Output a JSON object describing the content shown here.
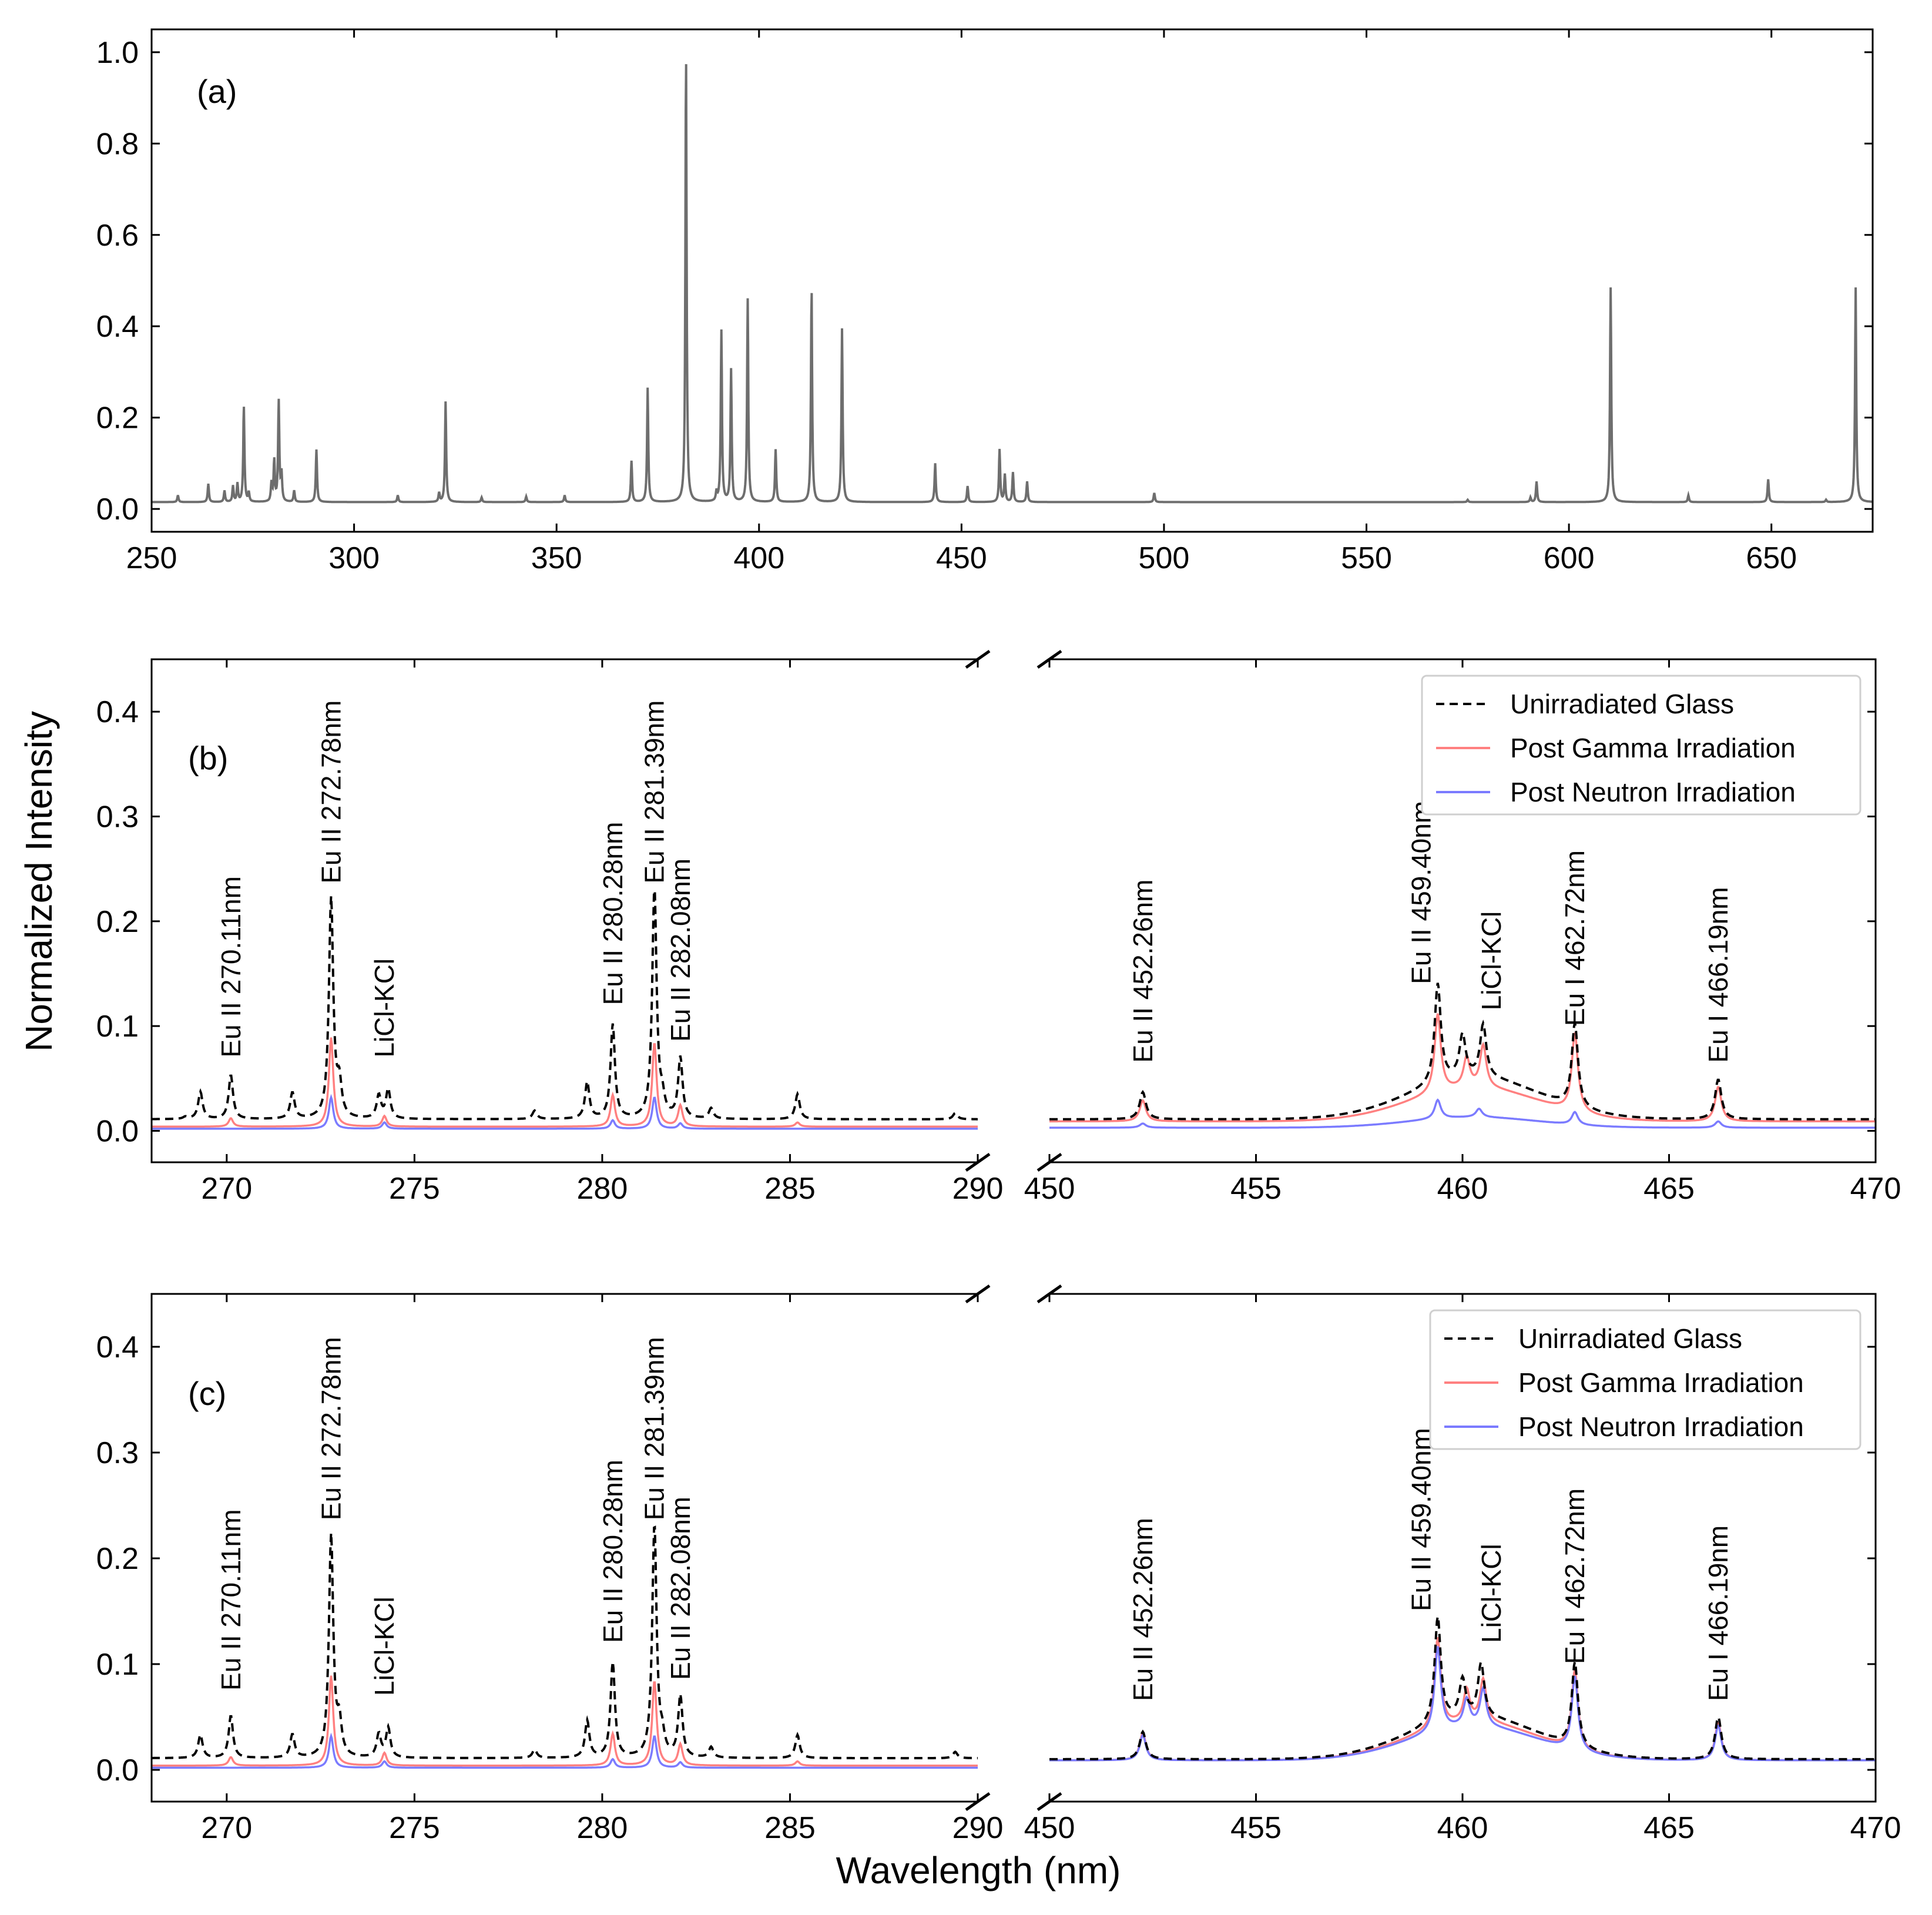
{
  "figure": {
    "ylabel": "Normalized Intensity",
    "xlabel": "Wavelength (nm)"
  },
  "colors": {
    "panel_a_line": "#6e6e6e",
    "unirradiated": "#000000",
    "gamma": "#ff8080",
    "neutron": "#7b7bff"
  },
  "chart_data": [
    {
      "id": "a",
      "type": "line",
      "panel_label": "(a)",
      "xlim": [
        250,
        675
      ],
      "ylim": [
        -0.05,
        1.05
      ],
      "xticks": [
        250,
        300,
        350,
        400,
        450,
        500,
        550,
        600,
        650
      ],
      "yticks": [
        0.0,
        0.2,
        0.4,
        0.6,
        0.8,
        1.0
      ],
      "baseline": 0.015,
      "peaks": [
        [
          256.5,
          0.015
        ],
        [
          264.0,
          0.04
        ],
        [
          268.0,
          0.025
        ],
        [
          270.1,
          0.035
        ],
        [
          271.2,
          0.04
        ],
        [
          272.78,
          0.21
        ],
        [
          274.0,
          0.02
        ],
        [
          279.6,
          0.04
        ],
        [
          280.28,
          0.09
        ],
        [
          281.39,
          0.22
        ],
        [
          282.08,
          0.06
        ],
        [
          285.2,
          0.025
        ],
        [
          290.7,
          0.115
        ],
        [
          310.8,
          0.015
        ],
        [
          321.0,
          0.02
        ],
        [
          322.6,
          0.22
        ],
        [
          331.5,
          0.01
        ],
        [
          342.5,
          0.012
        ],
        [
          352.0,
          0.015
        ],
        [
          368.5,
          0.09
        ],
        [
          372.5,
          0.25
        ],
        [
          381.97,
          0.985
        ],
        [
          389.5,
          0.02
        ],
        [
          390.7,
          0.375
        ],
        [
          393.1,
          0.29
        ],
        [
          397.2,
          0.445
        ],
        [
          404.1,
          0.115
        ],
        [
          412.97,
          0.47
        ],
        [
          420.5,
          0.38
        ],
        [
          443.5,
          0.085
        ],
        [
          451.5,
          0.035
        ],
        [
          459.4,
          0.115
        ],
        [
          460.7,
          0.06
        ],
        [
          462.7,
          0.065
        ],
        [
          466.2,
          0.045
        ],
        [
          497.6,
          0.02
        ],
        [
          575.0,
          0.005
        ],
        [
          590.5,
          0.01
        ],
        [
          592.0,
          0.045
        ],
        [
          610.3,
          0.47
        ],
        [
          629.5,
          0.015
        ],
        [
          649.2,
          0.05
        ],
        [
          663.5,
          0.005
        ],
        [
          670.8,
          0.47
        ]
      ]
    },
    {
      "id": "b",
      "type": "line",
      "panel_label": "(b)",
      "broken_x_axis": true,
      "left_xlim": [
        268,
        290
      ],
      "right_xlim": [
        450,
        470
      ],
      "ylim": [
        -0.03,
        0.45
      ],
      "left_xticks": [
        270,
        275,
        280,
        285,
        290
      ],
      "right_xticks": [
        450,
        455,
        460,
        465,
        470
      ],
      "yticks": [
        0.0,
        0.1,
        0.2,
        0.3,
        0.4
      ],
      "legend": [
        "Unirradiated Glass",
        "Post Gamma Irradiation",
        "Post Neutron Irradiation"
      ],
      "series": [
        {
          "name": "Unirradiated Glass",
          "style": "dashed",
          "left": {
            "baseline": 0.011,
            "peaks": [
              [
                268.9,
                0.002
              ],
              [
                269.3,
                0.026
              ],
              [
                270.11,
                0.042
              ],
              [
                271.75,
                0.025
              ],
              [
                272.78,
                0.21
              ],
              [
                273.0,
                0.03
              ],
              [
                274.05,
                0.022
              ],
              [
                274.3,
                0.028
              ],
              [
                278.2,
                0.008
              ],
              [
                279.6,
                0.035
              ],
              [
                280.28,
                0.09
              ],
              [
                281.39,
                0.22
              ],
              [
                281.6,
                0.015
              ],
              [
                282.08,
                0.058
              ],
              [
                282.9,
                0.01
              ],
              [
                285.2,
                0.024
              ],
              [
                289.4,
                0.006
              ]
            ]
          },
          "right": {
            "baseline": 0.011,
            "peaks": [
              [
                452.26,
                0.026
              ],
              [
                459.4,
                0.095
              ],
              [
                460.0,
                0.04
              ],
              [
                460.5,
                0.05
              ],
              [
                462.72,
                0.08
              ],
              [
                466.19,
                0.038
              ]
            ],
            "hump": [
              460.3,
              2.2,
              0.04
            ]
          }
        },
        {
          "name": "Post Gamma Irradiation",
          "style": "solid",
          "left": {
            "baseline": 0.004,
            "peaks": [
              [
                270.11,
                0.008
              ],
              [
                272.78,
                0.085
              ],
              [
                274.2,
                0.01
              ],
              [
                280.28,
                0.03
              ],
              [
                281.39,
                0.08
              ],
              [
                282.08,
                0.02
              ],
              [
                285.2,
                0.004
              ]
            ]
          },
          "right": {
            "baseline": 0.009,
            "peaks": [
              [
                452.26,
                0.02
              ],
              [
                459.4,
                0.075
              ],
              [
                460.1,
                0.028
              ],
              [
                460.5,
                0.04
              ],
              [
                462.72,
                0.075
              ],
              [
                466.19,
                0.033
              ]
            ],
            "hump": [
              460.3,
              2.2,
              0.032
            ]
          }
        },
        {
          "name": "Post Neutron Irradiation",
          "style": "solid",
          "left": {
            "baseline": 0.002,
            "peaks": [
              [
                272.78,
                0.03
              ],
              [
                274.2,
                0.006
              ],
              [
                280.28,
                0.008
              ],
              [
                281.39,
                0.03
              ],
              [
                282.08,
                0.005
              ]
            ]
          },
          "right": {
            "baseline": 0.003,
            "peaks": [
              [
                452.26,
                0.004
              ],
              [
                459.4,
                0.018
              ],
              [
                460.4,
                0.008
              ],
              [
                462.72,
                0.012
              ],
              [
                466.19,
                0.006
              ]
            ],
            "hump": [
              460.3,
              2.2,
              0.01
            ]
          }
        }
      ],
      "annotations": [
        {
          "side": "left",
          "text": "Eu II 270.11nm",
          "x": 270.11,
          "y": 0.07
        },
        {
          "side": "left",
          "text": "Eu II 272.78nm",
          "x": 272.78,
          "y": 0.236
        },
        {
          "side": "left",
          "text": "LiCl-KCl",
          "x": 274.2,
          "y": 0.07
        },
        {
          "side": "left",
          "text": "Eu II 280.28nm",
          "x": 280.28,
          "y": 0.12
        },
        {
          "side": "left",
          "text": "Eu II 281.39nm",
          "x": 281.39,
          "y": 0.236
        },
        {
          "side": "left",
          "text": "Eu II 282.08nm",
          "x": 282.08,
          "y": 0.085
        },
        {
          "side": "right",
          "text": "Eu II 452.26nm",
          "x": 452.26,
          "y": 0.065
        },
        {
          "side": "right",
          "text": "Eu II 459.40nm",
          "x": 459.0,
          "y": 0.14
        },
        {
          "side": "right",
          "text": "LiCl-KCl",
          "x": 460.7,
          "y": 0.115
        },
        {
          "side": "right",
          "text": "Eu I 462.72nm",
          "x": 462.72,
          "y": 0.1
        },
        {
          "side": "right",
          "text": "Eu I 466.19nm",
          "x": 466.19,
          "y": 0.065
        }
      ]
    },
    {
      "id": "c",
      "type": "line",
      "panel_label": "(c)",
      "broken_x_axis": true,
      "left_xlim": [
        268,
        290
      ],
      "right_xlim": [
        450,
        470
      ],
      "ylim": [
        -0.03,
        0.45
      ],
      "left_xticks": [
        270,
        275,
        280,
        285,
        290
      ],
      "right_xticks": [
        450,
        455,
        460,
        465,
        470
      ],
      "yticks": [
        0.0,
        0.1,
        0.2,
        0.3,
        0.4
      ],
      "legend": [
        "Unirradiated Glass",
        "Post Gamma Irradiation",
        "Post Neutron Irradiation"
      ],
      "series": [
        {
          "name": "Unirradiated Glass",
          "style": "dashed",
          "left": {
            "baseline": 0.011,
            "peaks": [
              [
                269.3,
                0.022
              ],
              [
                270.11,
                0.04
              ],
              [
                271.75,
                0.022
              ],
              [
                272.78,
                0.21
              ],
              [
                273.0,
                0.03
              ],
              [
                274.05,
                0.022
              ],
              [
                274.3,
                0.028
              ],
              [
                278.2,
                0.008
              ],
              [
                279.6,
                0.035
              ],
              [
                280.28,
                0.09
              ],
              [
                281.39,
                0.22
              ],
              [
                281.6,
                0.015
              ],
              [
                282.08,
                0.058
              ],
              [
                282.9,
                0.01
              ],
              [
                285.2,
                0.022
              ],
              [
                289.4,
                0.006
              ]
            ]
          },
          "right": {
            "baseline": 0.01,
            "peaks": [
              [
                452.26,
                0.026
              ],
              [
                459.4,
                0.1
              ],
              [
                460.0,
                0.035
              ],
              [
                460.45,
                0.05
              ],
              [
                462.72,
                0.08
              ],
              [
                466.19,
                0.04
              ]
            ],
            "hump": [
              460.3,
              2.2,
              0.04
            ]
          }
        },
        {
          "name": "Post Gamma Irradiation",
          "style": "solid",
          "left": {
            "baseline": 0.004,
            "peaks": [
              [
                270.11,
                0.008
              ],
              [
                272.78,
                0.085
              ],
              [
                274.2,
                0.012
              ],
              [
                280.28,
                0.03
              ],
              [
                281.39,
                0.08
              ],
              [
                282.08,
                0.02
              ],
              [
                285.2,
                0.004
              ]
            ]
          },
          "right": {
            "baseline": 0.009,
            "peaks": [
              [
                452.26,
                0.026
              ],
              [
                459.4,
                0.085
              ],
              [
                460.1,
                0.03
              ],
              [
                460.5,
                0.04
              ],
              [
                462.72,
                0.075
              ],
              [
                466.19,
                0.036
              ]
            ],
            "hump": [
              460.3,
              2.2,
              0.036
            ]
          }
        },
        {
          "name": "Post Neutron Irradiation",
          "style": "solid",
          "left": {
            "baseline": 0.002,
            "peaks": [
              [
                272.78,
                0.03
              ],
              [
                274.2,
                0.006
              ],
              [
                280.28,
                0.008
              ],
              [
                281.39,
                0.03
              ],
              [
                282.08,
                0.005
              ]
            ]
          },
          "right": {
            "baseline": 0.009,
            "peaks": [
              [
                452.26,
                0.024
              ],
              [
                459.4,
                0.08
              ],
              [
                460.1,
                0.025
              ],
              [
                460.5,
                0.035
              ],
              [
                462.72,
                0.07
              ],
              [
                466.19,
                0.033
              ]
            ],
            "hump": [
              460.3,
              2.2,
              0.032
            ]
          }
        }
      ],
      "annotations": [
        {
          "side": "left",
          "text": "Eu II 270.11nm",
          "x": 270.11,
          "y": 0.075
        },
        {
          "side": "left",
          "text": "Eu II 272.78nm",
          "x": 272.78,
          "y": 0.236
        },
        {
          "side": "left",
          "text": "LiCl-KCl",
          "x": 274.2,
          "y": 0.07
        },
        {
          "side": "left",
          "text": "Eu II 280.28nm",
          "x": 280.28,
          "y": 0.12
        },
        {
          "side": "left",
          "text": "Eu II 281.39nm",
          "x": 281.39,
          "y": 0.236
        },
        {
          "side": "left",
          "text": "Eu II 282.08nm",
          "x": 282.08,
          "y": 0.085
        },
        {
          "side": "right",
          "text": "Eu II 452.26nm",
          "x": 452.26,
          "y": 0.065
        },
        {
          "side": "right",
          "text": "Eu II 459.40nm",
          "x": 459.0,
          "y": 0.15
        },
        {
          "side": "right",
          "text": "LiCl-KCl",
          "x": 460.7,
          "y": 0.12
        },
        {
          "side": "right",
          "text": "Eu I 462.72nm",
          "x": 462.72,
          "y": 0.1
        },
        {
          "side": "right",
          "text": "Eu I 466.19nm",
          "x": 466.19,
          "y": 0.065
        }
      ]
    }
  ]
}
